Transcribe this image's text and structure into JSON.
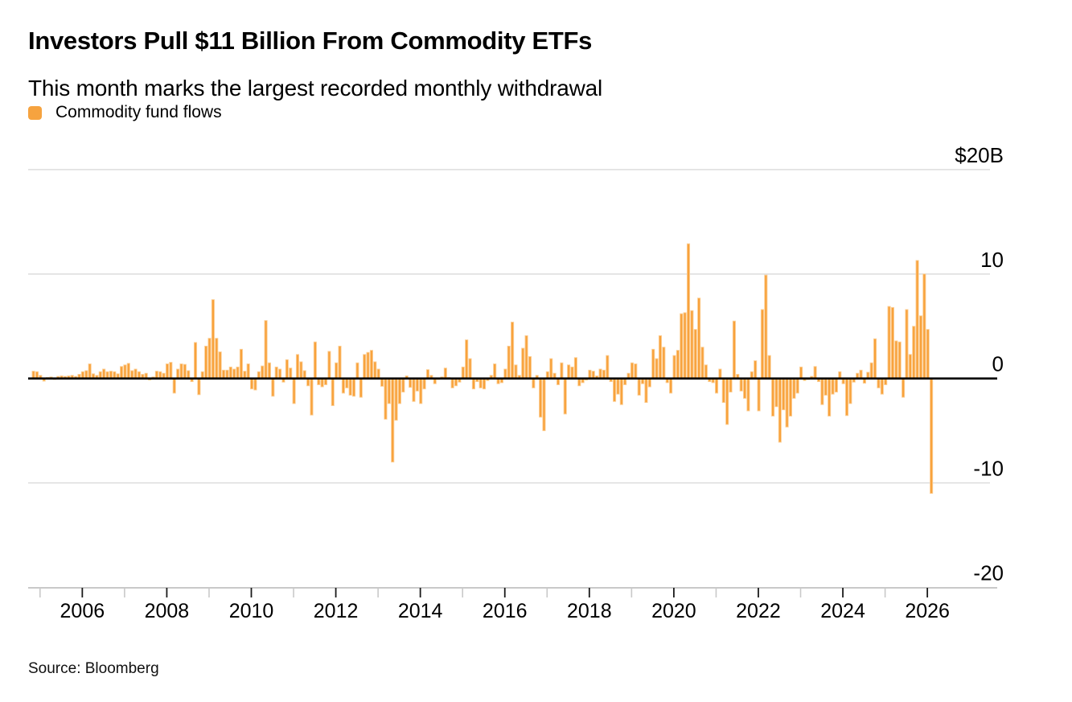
{
  "header": {
    "title": "Investors Pull $11 Billion From Commodity ETFs",
    "subtitle": "This month marks the largest recorded monthly withdrawal"
  },
  "legend": {
    "label": "Commodity fund flows",
    "swatch_color": "#F6A33F"
  },
  "source": {
    "text": "Source: Bloomberg"
  },
  "chart_data": {
    "type": "bar",
    "title": "Investors Pull $11 Billion From Commodity ETFs",
    "subtitle": "This month marks the largest recorded monthly withdrawal",
    "unit": "USD billions",
    "frequency": "monthly",
    "start_month": "2004-11",
    "end_month": "2026-02",
    "ylim": [
      -22,
      23
    ],
    "grid": "horizontal",
    "legend_position": "top-left",
    "y_axis": {
      "side": "right",
      "ticks": [
        {
          "value": 20,
          "label": "$20B"
        },
        {
          "value": 10,
          "label": "10"
        },
        {
          "value": 0,
          "label": "0"
        },
        {
          "value": -10,
          "label": "-10"
        },
        {
          "value": -20,
          "label": "-20"
        }
      ]
    },
    "x_axis": {
      "first_year": 2005,
      "last_year": 2026,
      "labeled_years": [
        2006,
        2008,
        2010,
        2012,
        2014,
        2016,
        2018,
        2020,
        2022,
        2024,
        2026
      ]
    },
    "colors": {
      "bar_fill": "#F8A23C",
      "bar_edge": "#FCCF96",
      "gridline": "#D9D9D9",
      "zero_line": "#000000",
      "axis_line": "#C9C9C9",
      "minor_tick": "#C9C9C9",
      "major_tick": "#1A1A1A"
    },
    "annotations": {
      "largest_inflow": {
        "month": "2020-05",
        "value": 12.9
      },
      "largest_outflow": {
        "month": "2026-02",
        "value": -11.0
      }
    },
    "series": [
      {
        "name": "Commodity fund flows",
        "values": [
          0.7,
          0.65,
          0.3,
          -0.25,
          0.1,
          0.15,
          -0.1,
          0.2,
          0.25,
          0.2,
          0.25,
          0.3,
          0.2,
          0.4,
          0.65,
          0.75,
          1.4,
          0.45,
          0.3,
          0.65,
          0.9,
          0.65,
          0.7,
          0.65,
          0.45,
          1.15,
          1.3,
          1.45,
          0.75,
          0.9,
          0.65,
          0.4,
          0.5,
          -0.15,
          0.15,
          0.7,
          0.65,
          0.5,
          1.4,
          1.55,
          -1.4,
          0.9,
          1.4,
          1.35,
          0.75,
          -0.3,
          3.45,
          -1.55,
          0.65,
          3.1,
          3.85,
          7.55,
          3.85,
          2.55,
          0.8,
          0.8,
          1.1,
          0.9,
          1.1,
          2.8,
          0.7,
          1.4,
          -1.0,
          -1.1,
          0.65,
          1.2,
          5.55,
          1.5,
          -1.7,
          1.1,
          0.9,
          -0.35,
          1.8,
          1.0,
          -2.4,
          2.3,
          1.6,
          0.75,
          -0.7,
          -3.5,
          3.5,
          -0.6,
          -0.8,
          -0.6,
          2.6,
          -2.6,
          1.5,
          3.1,
          -1.4,
          -0.9,
          -1.6,
          -1.7,
          1.5,
          -1.8,
          2.3,
          2.5,
          2.7,
          1.6,
          0.9,
          -0.75,
          -3.9,
          -2.4,
          -8.0,
          -4.0,
          -2.4,
          -1.3,
          0.25,
          -0.85,
          -2.2,
          -1.2,
          -2.4,
          -1.0,
          0.85,
          0.3,
          -0.5,
          -0.1,
          0.15,
          1.0,
          0.1,
          -0.9,
          -0.7,
          -0.35,
          1.1,
          3.7,
          1.9,
          -1.0,
          -0.3,
          -0.9,
          -1.0,
          -0.2,
          0.3,
          1.4,
          -0.5,
          -0.4,
          0.9,
          3.1,
          5.4,
          1.3,
          0.3,
          2.9,
          4.1,
          2.1,
          -0.9,
          0.3,
          -3.7,
          -5.0,
          0.65,
          1.9,
          0.5,
          -0.6,
          1.5,
          -3.4,
          1.3,
          1.1,
          2.0,
          -0.7,
          -0.4,
          -0.15,
          0.8,
          0.7,
          0.25,
          0.9,
          0.8,
          2.2,
          -0.3,
          -2.2,
          -1.5,
          -2.5,
          -0.6,
          0.5,
          1.5,
          1.4,
          -1.6,
          -0.5,
          -2.3,
          -0.8,
          2.8,
          1.9,
          4.1,
          3.0,
          -0.4,
          -1.4,
          2.2,
          2.7,
          6.2,
          6.3,
          12.9,
          6.5,
          4.7,
          7.7,
          3.0,
          1.3,
          -0.3,
          -0.4,
          -1.4,
          0.9,
          -2.3,
          -4.4,
          -1.3,
          5.5,
          0.4,
          -1.2,
          -1.9,
          -3.1,
          0.65,
          1.7,
          -3.1,
          6.6,
          9.9,
          2.2,
          -3.6,
          -2.7,
          -6.1,
          -3.0,
          -4.65,
          -3.6,
          -1.9,
          -1.4,
          1.1,
          -0.2,
          -0.1,
          0.2,
          1.15,
          -0.3,
          -2.5,
          -1.6,
          -3.6,
          -1.5,
          -1.3,
          0.65,
          -0.5,
          -3.55,
          -2.4,
          -0.35,
          0.5,
          0.8,
          -0.45,
          0.6,
          1.5,
          3.8,
          -0.9,
          -1.5,
          -0.6,
          6.9,
          6.8,
          3.6,
          3.5,
          -1.8,
          6.6,
          2.3,
          5.0,
          11.3,
          6.0,
          10.0,
          4.7,
          -11.0
        ]
      }
    ]
  }
}
